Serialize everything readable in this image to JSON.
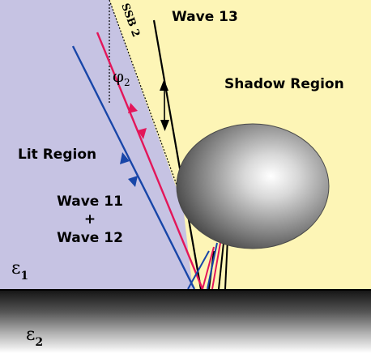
{
  "labels": {
    "wave13": "Wave 13",
    "ssb": "SSB 2",
    "phi_symbol": "φ",
    "phi_sub": "2",
    "shadow_region": "Shadow Region",
    "lit_region": "Lit  Region",
    "wave11": "Wave 11",
    "plus": "+",
    "wave12": "Wave 12",
    "eps1_symbol": "ε",
    "eps1_sub": "1",
    "eps2_symbol": "ε",
    "eps2_sub": "2"
  },
  "colors": {
    "lit_region": "#c6c3e3",
    "shadow_region": "#fdf5b6",
    "wave_blue": "#1846a8",
    "wave_red": "#e3165a",
    "wave_black": "#000000",
    "ground_top": "#1b1b1b",
    "ground_bottom": "#ffffff",
    "sphere_light": "#ffffff",
    "sphere_dark": "#3a3a3a"
  }
}
